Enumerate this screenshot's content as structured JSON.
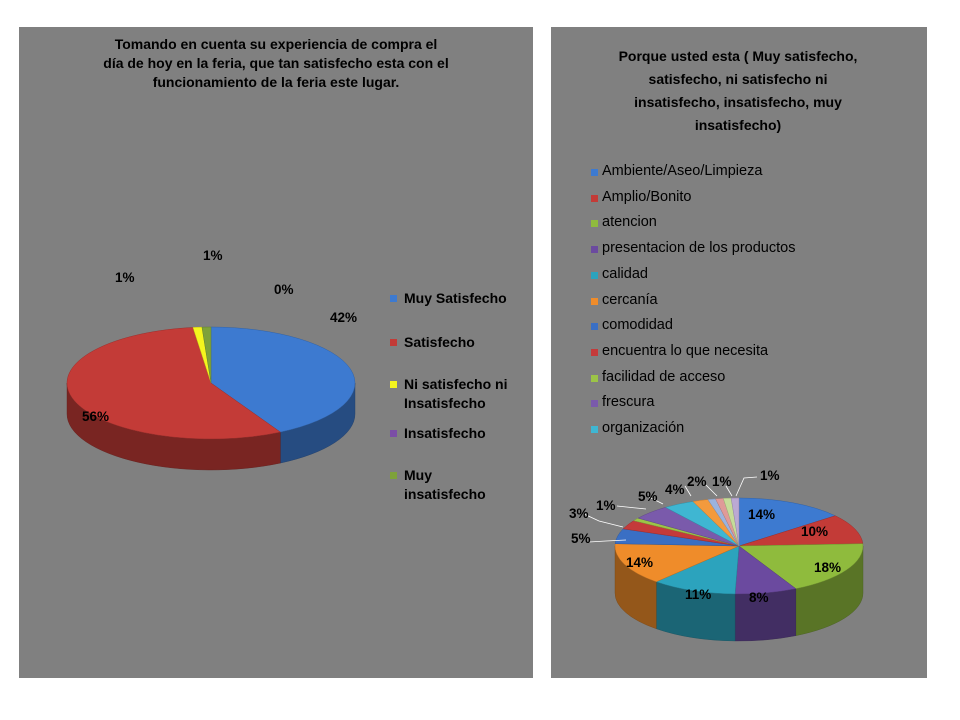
{
  "chart_data": [
    {
      "type": "pie",
      "title": "Tomando  en  cuenta su experiencia de compra el\ndía de hoy en la feria, que tan satisfecho esta  con el\nfuncionamiento de la feria este lugar.",
      "categories": [
        "Muy Satisfecho",
        "Satisfecho",
        "Ni satisfecho ni Insatisfecho",
        "Insatisfecho",
        "Muy insatisfecho"
      ],
      "values": [
        42,
        56,
        1,
        0,
        1
      ],
      "data_labels": [
        "42%",
        "56%",
        "1%",
        "0%",
        "1%"
      ],
      "colors": [
        "#3d7ad0",
        "#c33b37",
        "#f5f51e",
        "#7b4ea6",
        "#7ea23a"
      ],
      "legend": "right"
    },
    {
      "type": "pie",
      "title": "Porque usted esta ( Muy satisfecho,\nsatisfecho, ni satisfecho ni\ninsatisfecho, insatisfecho, muy\ninsatisfecho)",
      "categories": [
        "Ambiente/Aseo/Limpieza",
        "Amplio/Bonito",
        "atencion",
        "presentacion de los productos",
        "calidad",
        "cercanía",
        "comodidad",
        "encuentra lo que necesita",
        "facilidad de acceso",
        "frescura",
        "organización",
        "",
        "",
        "",
        "",
        ""
      ],
      "values": [
        14,
        10,
        18,
        8,
        11,
        14,
        5,
        3,
        1,
        5,
        4,
        2,
        1,
        1,
        1,
        1
      ],
      "data_labels": [
        "14%",
        "10%",
        "18%",
        "8%",
        "11%",
        "14%",
        "5%",
        "3%",
        "1%",
        "5%",
        "4%",
        "2%",
        "1%",
        "",
        "",
        "1%"
      ],
      "colors": [
        "#3d7ad0",
        "#c33b37",
        "#8fbb3d",
        "#6b4a9f",
        "#2ca3bd",
        "#ef8c2a",
        "#3a6fc4",
        "#c43a3a",
        "#9cc447",
        "#7a5aab",
        "#3fb6d2",
        "#f39a3d",
        "#9bb3dd",
        "#df9a98",
        "#c6dc99",
        "#bba9d3"
      ],
      "legend": "top"
    }
  ]
}
